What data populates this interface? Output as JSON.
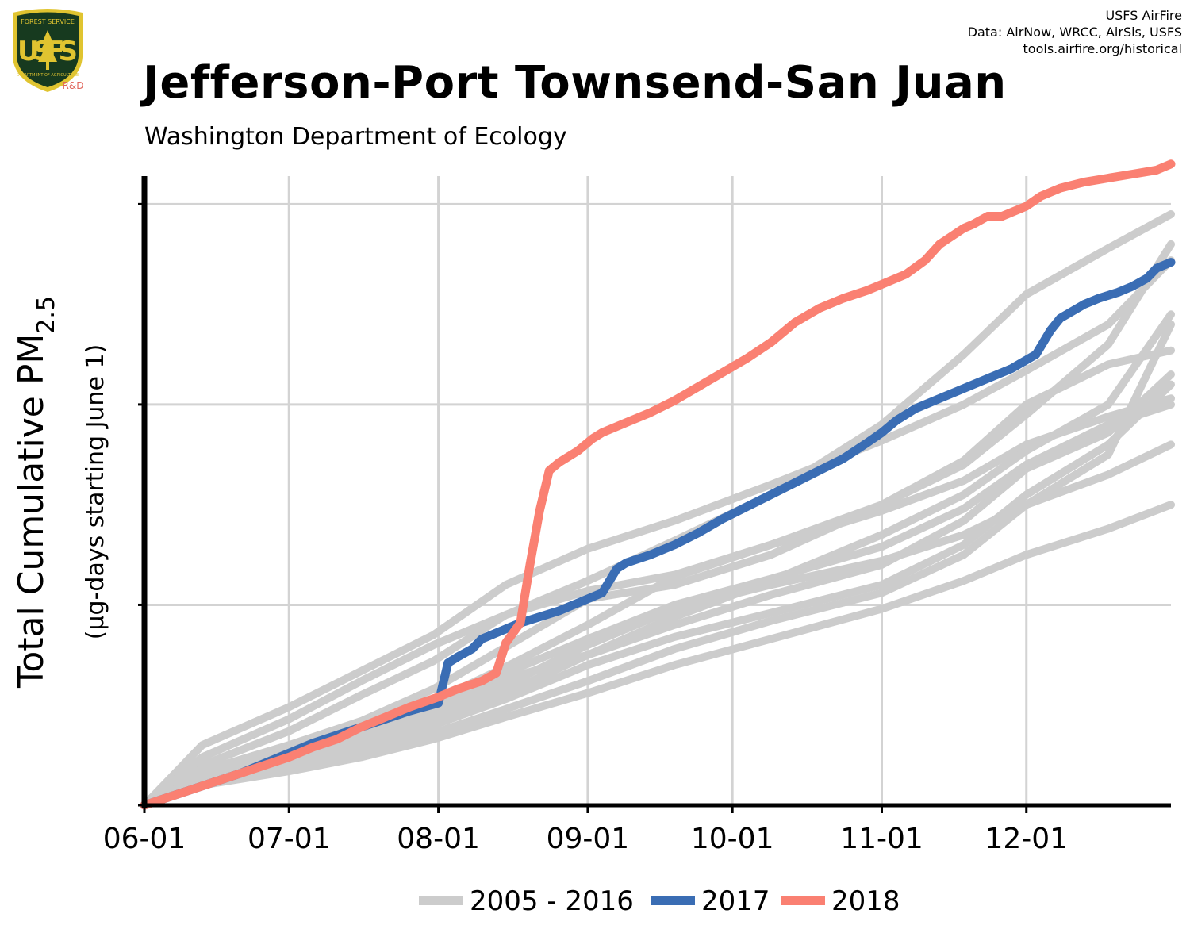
{
  "header": {
    "logo": {
      "top_text": "FOREST SERVICE",
      "letters": "USFS",
      "bottom_text": "DEPARTMENT OF AGRICULTURE",
      "badge_text": "R&D"
    },
    "credits": [
      "USFS AirFire",
      "Data: AirNow, WRCC, AirSis, USFS",
      "tools.airfire.org/historical"
    ]
  },
  "colors": {
    "historic": "#cccccc",
    "y2017": "#3a6db4",
    "y2018": "#fa8072",
    "axis": "#000000",
    "grid": "#d3d3d3",
    "logo_shield": "#173a1f",
    "logo_gold": "#e0c430",
    "logo_badge_text": "#e0655a"
  },
  "chart_data": {
    "type": "line",
    "title": "Jefferson-Port Townsend-San Juan",
    "subtitle": "Washington Department of Ecology",
    "ylabel_main": "Total Cumulative PM",
    "ylabel_sub": "2.5",
    "ylabel_units": "(µg-days starting June 1)",
    "x_tick_labels": [
      "06-01",
      "07-01",
      "08-01",
      "09-01",
      "10-01",
      "11-01",
      "12-01"
    ],
    "x_tick_days": [
      0,
      30,
      61,
      92,
      122,
      153,
      183
    ],
    "xlim": [
      0,
      213
    ],
    "y_ticks": [
      0,
      1,
      2,
      3
    ],
    "y_tick_labels": [],
    "ylim": [
      0,
      3.14
    ],
    "grid": true,
    "legend_position": "bottom",
    "legend": [
      {
        "label": "2005 - 2016",
        "color_key": "historic"
      },
      {
        "label": "2017",
        "color_key": "y2017"
      },
      {
        "label": "2018",
        "color_key": "y2018"
      }
    ],
    "series_historic": [
      {
        "x": [
          0,
          12,
          30,
          45,
          60,
          75,
          92,
          110,
          130,
          153,
          170,
          183,
          200,
          213
        ],
        "y": [
          0,
          0.3,
          0.49,
          0.67,
          0.85,
          1.1,
          1.28,
          1.42,
          1.6,
          1.82,
          2.0,
          2.17,
          2.4,
          2.72
        ]
      },
      {
        "x": [
          0,
          12,
          30,
          45,
          60,
          75,
          92,
          110,
          130,
          153,
          170,
          183,
          200,
          213
        ],
        "y": [
          0,
          0.2,
          0.37,
          0.55,
          0.72,
          0.95,
          1.12,
          1.32,
          1.55,
          1.9,
          2.25,
          2.55,
          2.78,
          2.95
        ]
      },
      {
        "x": [
          0,
          12,
          30,
          45,
          60,
          75,
          92,
          110,
          130,
          153,
          170,
          183,
          200,
          213
        ],
        "y": [
          0,
          0.24,
          0.43,
          0.62,
          0.8,
          0.95,
          1.07,
          1.15,
          1.3,
          1.5,
          1.7,
          1.95,
          2.3,
          2.8
        ]
      },
      {
        "x": [
          0,
          12,
          30,
          45,
          60,
          75,
          92,
          110,
          130,
          153,
          170,
          183,
          200,
          213
        ],
        "y": [
          0,
          0.17,
          0.3,
          0.42,
          0.58,
          0.79,
          1.03,
          1.1,
          1.25,
          1.5,
          1.72,
          2.0,
          2.2,
          2.27
        ]
      },
      {
        "x": [
          0,
          12,
          30,
          45,
          60,
          75,
          92,
          110,
          130,
          153,
          170,
          183,
          200,
          213
        ],
        "y": [
          0,
          0.16,
          0.28,
          0.39,
          0.52,
          0.69,
          0.9,
          1.14,
          1.3,
          1.47,
          1.62,
          1.8,
          1.94,
          2.03
        ]
      },
      {
        "x": [
          0,
          12,
          30,
          45,
          60,
          75,
          92,
          110,
          130,
          153,
          170,
          183,
          200,
          213
        ],
        "y": [
          0,
          0.15,
          0.25,
          0.36,
          0.48,
          0.63,
          0.75,
          0.9,
          1.05,
          1.2,
          1.42,
          1.68,
          1.86,
          2.15
        ]
      },
      {
        "x": [
          0,
          12,
          30,
          45,
          60,
          75,
          92,
          110,
          130,
          153,
          170,
          183,
          200,
          213
        ],
        "y": [
          0,
          0.15,
          0.26,
          0.37,
          0.5,
          0.66,
          0.83,
          1.0,
          1.13,
          1.29,
          1.48,
          1.7,
          1.9,
          2.0
        ]
      },
      {
        "x": [
          0,
          12,
          30,
          45,
          60,
          75,
          92,
          110,
          130,
          153,
          170,
          183,
          200,
          213
        ],
        "y": [
          0,
          0.13,
          0.22,
          0.3,
          0.42,
          0.56,
          0.75,
          0.94,
          1.12,
          1.35,
          1.55,
          1.77,
          2.0,
          2.45
        ]
      },
      {
        "x": [
          0,
          12,
          30,
          45,
          60,
          75,
          92,
          110,
          130,
          153,
          170,
          183,
          200,
          213
        ],
        "y": [
          0,
          0.13,
          0.23,
          0.33,
          0.45,
          0.6,
          0.8,
          0.98,
          1.1,
          1.22,
          1.35,
          1.5,
          1.65,
          1.8
        ]
      },
      {
        "x": [
          0,
          12,
          30,
          45,
          60,
          75,
          92,
          110,
          130,
          153,
          170,
          183,
          200,
          213
        ],
        "y": [
          0,
          0.12,
          0.2,
          0.29,
          0.4,
          0.53,
          0.7,
          0.84,
          0.96,
          1.1,
          1.3,
          1.55,
          1.8,
          2.1
        ]
      },
      {
        "x": [
          0,
          12,
          30,
          45,
          60,
          75,
          92,
          110,
          130,
          153,
          170,
          183,
          200,
          213
        ],
        "y": [
          0,
          0.11,
          0.18,
          0.26,
          0.36,
          0.48,
          0.62,
          0.78,
          0.92,
          1.06,
          1.25,
          1.5,
          1.75,
          2.4
        ]
      },
      {
        "x": [
          0,
          12,
          30,
          45,
          60,
          75,
          92,
          110,
          130,
          153,
          170,
          183,
          200,
          213
        ],
        "y": [
          0,
          0.1,
          0.17,
          0.24,
          0.33,
          0.44,
          0.56,
          0.7,
          0.83,
          0.98,
          1.12,
          1.25,
          1.38,
          1.5
        ]
      }
    ],
    "series_2017": {
      "name": "2017",
      "x": [
        0,
        5,
        10,
        15,
        20,
        25,
        30,
        35,
        40,
        45,
        50,
        55,
        61,
        63,
        65,
        68,
        70,
        74,
        78,
        82,
        86,
        90,
        95,
        98,
        100,
        105,
        110,
        115,
        120,
        125,
        130,
        135,
        140,
        145,
        150,
        153,
        156,
        160,
        165,
        170,
        175,
        180,
        185,
        188,
        190,
        195,
        198,
        202,
        205,
        208,
        210,
        213
      ],
      "y": [
        0,
        0.04,
        0.08,
        0.12,
        0.16,
        0.21,
        0.26,
        0.31,
        0.35,
        0.39,
        0.43,
        0.47,
        0.51,
        0.71,
        0.74,
        0.78,
        0.83,
        0.87,
        0.91,
        0.94,
        0.97,
        1.01,
        1.06,
        1.18,
        1.21,
        1.25,
        1.3,
        1.36,
        1.43,
        1.49,
        1.55,
        1.61,
        1.67,
        1.73,
        1.81,
        1.86,
        1.92,
        1.98,
        2.03,
        2.08,
        2.13,
        2.18,
        2.25,
        2.37,
        2.43,
        2.5,
        2.53,
        2.56,
        2.59,
        2.63,
        2.68,
        2.71
      ]
    },
    "series_2018": {
      "name": "2018",
      "x": [
        0,
        5,
        10,
        15,
        20,
        25,
        30,
        35,
        40,
        45,
        50,
        55,
        61,
        65,
        70,
        73,
        75,
        78,
        80,
        82,
        84,
        86,
        88,
        90,
        93,
        95,
        100,
        105,
        110,
        115,
        120,
        125,
        130,
        135,
        140,
        145,
        150,
        153,
        158,
        162,
        165,
        170,
        172,
        175,
        178,
        183,
        186,
        190,
        195,
        200,
        205,
        210,
        213
      ],
      "y": [
        0,
        0.04,
        0.08,
        0.12,
        0.16,
        0.2,
        0.24,
        0.29,
        0.33,
        0.39,
        0.44,
        0.49,
        0.54,
        0.58,
        0.62,
        0.66,
        0.81,
        0.91,
        1.2,
        1.47,
        1.67,
        1.71,
        1.74,
        1.77,
        1.83,
        1.86,
        1.91,
        1.96,
        2.02,
        2.09,
        2.16,
        2.23,
        2.31,
        2.41,
        2.48,
        2.53,
        2.57,
        2.6,
        2.65,
        2.72,
        2.8,
        2.88,
        2.9,
        2.94,
        2.94,
        2.99,
        3.04,
        3.08,
        3.11,
        3.13,
        3.15,
        3.17,
        3.2
      ]
    }
  }
}
